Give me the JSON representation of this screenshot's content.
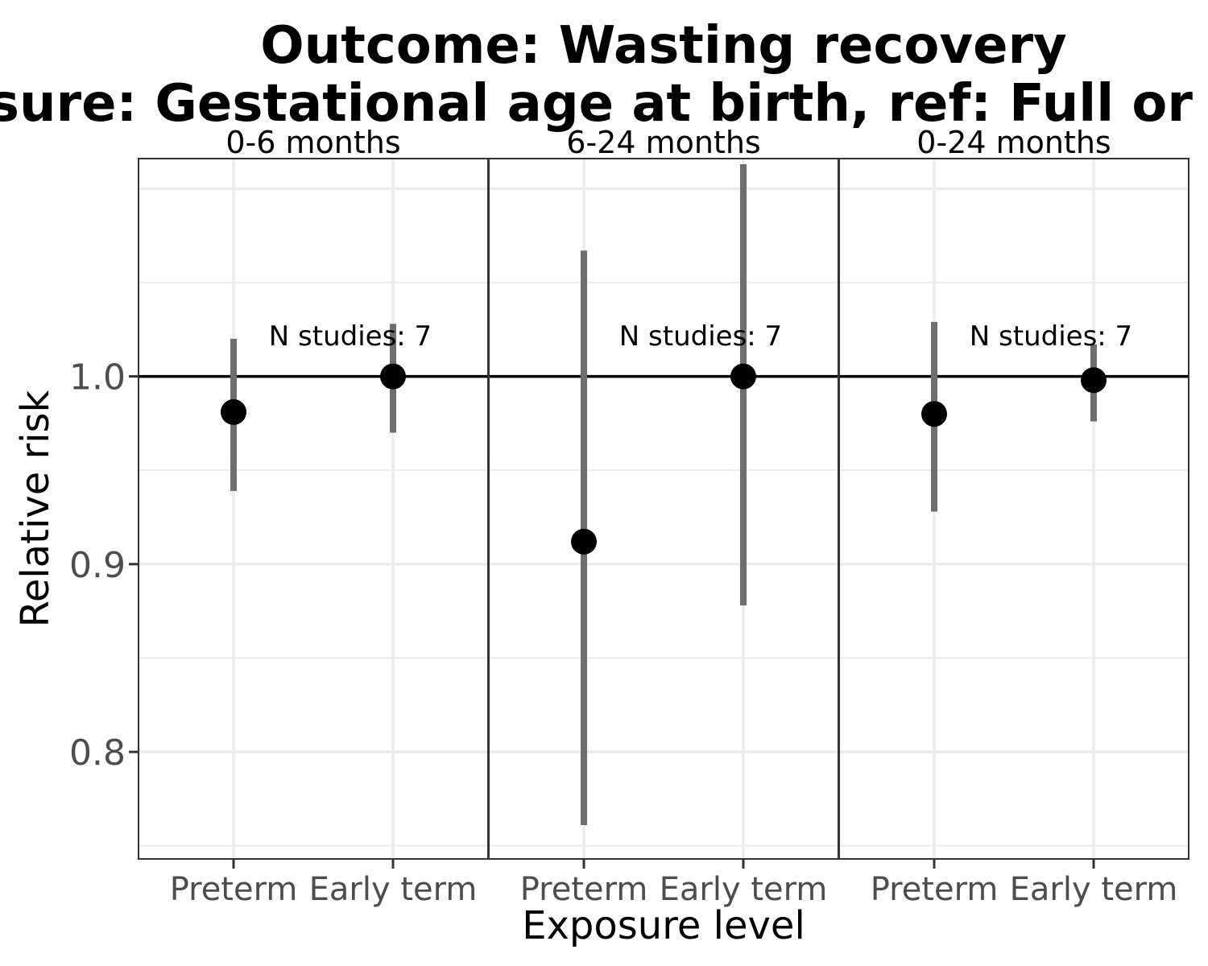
{
  "chart_data": {
    "type": "scatter",
    "title_lines": [
      "Outcome: Wasting recovery",
      "Exposure: Gestational age at birth, ref: Full or late term"
    ],
    "xlabel": "Exposure level",
    "ylabel": "Relative risk",
    "ylim": [
      0.743,
      1.116
    ],
    "yticks": [
      0.8,
      0.9,
      1.0
    ],
    "ytick_labels": [
      "0.8",
      "0.9",
      "1.0"
    ],
    "reference_line": 1.0,
    "grid": true,
    "categories": [
      "Preterm",
      "Early term"
    ],
    "panels": [
      {
        "label": "0-6 months",
        "annotation": "N studies: 7",
        "points": [
          {
            "category": "Preterm",
            "estimate": 0.981,
            "ci_lower": 0.939,
            "ci_upper": 1.02
          },
          {
            "category": "Early term",
            "estimate": 1.0,
            "ci_lower": 0.97,
            "ci_upper": 1.028
          }
        ]
      },
      {
        "label": "6-24 months",
        "annotation": "N studies: 7",
        "points": [
          {
            "category": "Preterm",
            "estimate": 0.912,
            "ci_lower": 0.761,
            "ci_upper": 1.067
          },
          {
            "category": "Early term",
            "estimate": 1.0,
            "ci_lower": 0.878,
            "ci_upper": 1.113
          }
        ]
      },
      {
        "label": "0-24 months",
        "annotation": "N studies: 7",
        "points": [
          {
            "category": "Preterm",
            "estimate": 0.98,
            "ci_lower": 0.928,
            "ci_upper": 1.029
          },
          {
            "category": "Early term",
            "estimate": 0.998,
            "ci_lower": 0.976,
            "ci_upper": 1.017
          }
        ]
      }
    ]
  }
}
